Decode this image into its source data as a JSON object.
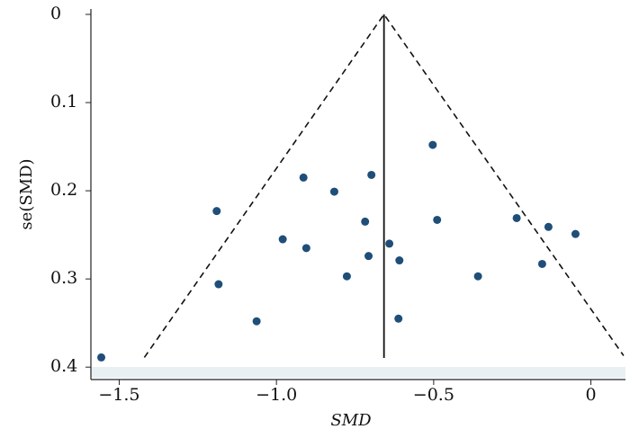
{
  "chart_data": {
    "type": "scatter",
    "xlabel": "SMD",
    "ylabel": "se(SMD)",
    "xlim": [
      -1.59,
      0.11
    ],
    "ylim": [
      0,
      0.41
    ],
    "y_inverted": true,
    "xticks": [
      {
        "value": -1.5,
        "label": "−1.5"
      },
      {
        "value": -1.0,
        "label": "−1.0"
      },
      {
        "value": -0.5,
        "label": "−0.5"
      },
      0
    ],
    "yticks": [
      0,
      0.1,
      0.2,
      0.3,
      0.4
    ],
    "color": "#1f4e79",
    "x": [
      -1.557,
      -1.19,
      -1.184,
      -1.063,
      -0.98,
      -0.914,
      -0.905,
      -0.816,
      -0.776,
      -0.718,
      -0.707,
      -0.698,
      -0.641,
      -0.609,
      -0.612,
      -0.503,
      -0.489,
      -0.359,
      -0.236,
      -0.155,
      -0.135,
      -0.049
    ],
    "values": [
      0.389,
      0.223,
      0.306,
      0.348,
      0.255,
      0.185,
      0.265,
      0.201,
      0.297,
      0.235,
      0.274,
      0.182,
      0.26,
      0.279,
      0.345,
      0.148,
      0.233,
      0.297,
      0.231,
      0.283,
      0.241,
      0.249
    ],
    "pooled_estimate": -0.658,
    "funnel": {
      "x": [
        -1.42,
        -0.658,
        0.104
      ],
      "y": [
        0.389,
        0,
        0.387
      ]
    }
  }
}
